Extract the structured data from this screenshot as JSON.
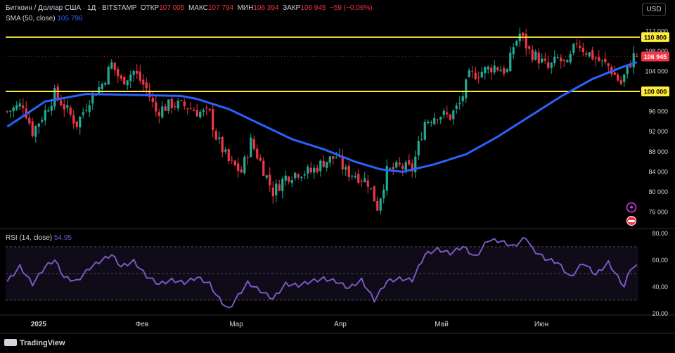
{
  "header": {
    "symbol": "Биткоин / Доллар США · 1Д · BITSTAMP",
    "open_label": "ОТКР",
    "open_value": "107 005",
    "high_label": "МАКС",
    "high_value": "107 794",
    "low_label": "МИН",
    "low_value": "106 394",
    "close_label": "ЗАКР",
    "close_value": "106 945",
    "change": "−59 (−0,06%)",
    "sma_label": "SMA (50, close)",
    "sma_value": "105 796",
    "currency": "USD"
  },
  "price_badges": {
    "line_upper": "110 800",
    "line_lower": "100 000",
    "last_price": "106 945"
  },
  "rsi_header": {
    "label": "RSI (14, close)",
    "value": "54,95"
  },
  "footer": {
    "brand": "TradingView"
  },
  "colors": {
    "up": "#22ab94",
    "down": "#f23645",
    "sma": "#2962ff",
    "level": "#ffeb3b",
    "rsi": "#7e57c2"
  },
  "chart_data": [
    {
      "type": "candlestick",
      "ylim": [
        73000,
        114000
      ],
      "yticks": [
        112000,
        108000,
        104000,
        100000,
        96000,
        92000,
        88000,
        84000,
        80000,
        76000
      ],
      "ytick_labels": [
        "112 000",
        "108 000",
        "104 000",
        "100 000",
        "96 000",
        "92 000",
        "88 000",
        "84 000",
        "80 000",
        "76 000"
      ],
      "x_labels": [
        "2025",
        "Фев",
        "Мар",
        "Апр",
        "Май",
        "Июн"
      ],
      "horizontal_levels": [
        110800,
        100000
      ],
      "sma_period": 50,
      "close_anchors": [
        [
          0,
          96000
        ],
        [
          5,
          97500
        ],
        [
          8,
          92000
        ],
        [
          12,
          96000
        ],
        [
          15,
          99500
        ],
        [
          18,
          97000
        ],
        [
          22,
          93500
        ],
        [
          26,
          98500
        ],
        [
          30,
          101500
        ],
        [
          33,
          105500
        ],
        [
          36,
          102000
        ],
        [
          40,
          104000
        ],
        [
          44,
          100500
        ],
        [
          47,
          96000
        ],
        [
          52,
          97500
        ],
        [
          57,
          97000
        ],
        [
          60,
          96000
        ],
        [
          64,
          95500
        ],
        [
          66,
          91000
        ],
        [
          70,
          86000
        ],
        [
          74,
          84000
        ],
        [
          77,
          90000
        ],
        [
          80,
          86000
        ],
        [
          84,
          80000
        ],
        [
          88,
          83000
        ],
        [
          92,
          84000
        ],
        [
          96,
          84000
        ],
        [
          100,
          86000
        ],
        [
          104,
          87000
        ],
        [
          107,
          84000
        ],
        [
          110,
          83500
        ],
        [
          114,
          82000
        ],
        [
          117,
          77000
        ],
        [
          120,
          84000
        ],
        [
          124,
          85000
        ],
        [
          128,
          84500
        ],
        [
          132,
          94000
        ],
        [
          136,
          95500
        ],
        [
          140,
          95000
        ],
        [
          143,
          97500
        ],
        [
          146,
          103000
        ],
        [
          150,
          104000
        ],
        [
          154,
          105000
        ],
        [
          158,
          104000
        ],
        [
          160,
          109000
        ],
        [
          162,
          111500
        ],
        [
          165,
          108000
        ],
        [
          168,
          106500
        ],
        [
          171,
          104500
        ],
        [
          174,
          106500
        ],
        [
          177,
          105000
        ],
        [
          180,
          110000
        ],
        [
          182,
          108500
        ],
        [
          186,
          106500
        ],
        [
          190,
          105000
        ],
        [
          194,
          101500
        ],
        [
          196,
          104500
        ],
        [
          198,
          107000
        ],
        [
          199,
          106945
        ]
      ],
      "sma_anchors": [
        [
          0,
          93000
        ],
        [
          12,
          98000
        ],
        [
          25,
          99500
        ],
        [
          40,
          99300
        ],
        [
          55,
          99100
        ],
        [
          60,
          98500
        ],
        [
          70,
          96500
        ],
        [
          80,
          93500
        ],
        [
          90,
          90500
        ],
        [
          100,
          88500
        ],
        [
          110,
          86000
        ],
        [
          118,
          84500
        ],
        [
          125,
          84000
        ],
        [
          135,
          85500
        ],
        [
          145,
          87500
        ],
        [
          155,
          91000
        ],
        [
          165,
          95000
        ],
        [
          175,
          99000
        ],
        [
          185,
          102500
        ],
        [
          195,
          105000
        ],
        [
          199,
          105796
        ]
      ]
    },
    {
      "type": "line",
      "name": "RSI (14, close)",
      "ylim": [
        20,
        82
      ],
      "yticks": [
        80,
        60,
        40,
        20
      ],
      "ytick_labels": [
        "80,00",
        "60,00",
        "40,00",
        "20,00"
      ],
      "bands": [
        70,
        50,
        30
      ],
      "anchors": [
        [
          0,
          44
        ],
        [
          4,
          55
        ],
        [
          8,
          42
        ],
        [
          12,
          55
        ],
        [
          15,
          60
        ],
        [
          18,
          47
        ],
        [
          22,
          44
        ],
        [
          26,
          54
        ],
        [
          30,
          60
        ],
        [
          33,
          64
        ],
        [
          36,
          55
        ],
        [
          40,
          59
        ],
        [
          44,
          48
        ],
        [
          48,
          42
        ],
        [
          52,
          45
        ],
        [
          56,
          43
        ],
        [
          60,
          47
        ],
        [
          64,
          42
        ],
        [
          66,
          34
        ],
        [
          68,
          28
        ],
        [
          70,
          23
        ],
        [
          72,
          30
        ],
        [
          76,
          43
        ],
        [
          80,
          37
        ],
        [
          84,
          31
        ],
        [
          88,
          42
        ],
        [
          92,
          41
        ],
        [
          96,
          44
        ],
        [
          100,
          46
        ],
        [
          104,
          44
        ],
        [
          108,
          39
        ],
        [
          112,
          45
        ],
        [
          116,
          30
        ],
        [
          120,
          44
        ],
        [
          124,
          46
        ],
        [
          128,
          45
        ],
        [
          132,
          64
        ],
        [
          136,
          68
        ],
        [
          140,
          65
        ],
        [
          144,
          70
        ],
        [
          148,
          62
        ],
        [
          152,
          75
        ],
        [
          156,
          74
        ],
        [
          160,
          70
        ],
        [
          164,
          77
        ],
        [
          166,
          68
        ],
        [
          170,
          61
        ],
        [
          174,
          58
        ],
        [
          178,
          47
        ],
        [
          182,
          58
        ],
        [
          186,
          49
        ],
        [
          190,
          58
        ],
        [
          193,
          47
        ],
        [
          195,
          40
        ],
        [
          197,
          54
        ],
        [
          199,
          55
        ]
      ]
    }
  ]
}
